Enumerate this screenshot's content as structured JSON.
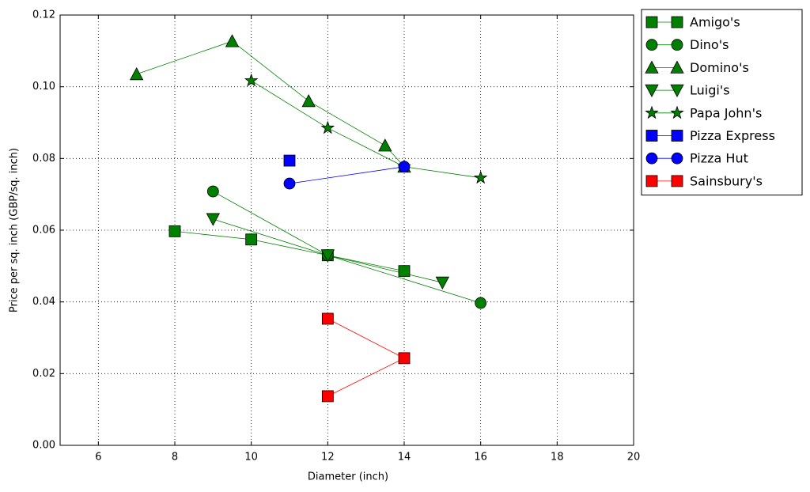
{
  "chart_data": {
    "type": "line",
    "x_label": "Diameter (inch)",
    "y_label": "Price per sq. inch (GBP/sq. inch)",
    "xlim": [
      5,
      20
    ],
    "ylim": [
      0,
      0.12
    ],
    "xticks": [
      6,
      8,
      10,
      12,
      14,
      16,
      18,
      20
    ],
    "yticks": [
      {
        "value": 0,
        "label": "0.00"
      },
      {
        "value": 0.02,
        "label": "0.02"
      },
      {
        "value": 0.04,
        "label": "0.04"
      },
      {
        "value": 0.06,
        "label": "0.06"
      },
      {
        "value": 0.08,
        "label": "0.08"
      },
      {
        "value": 0.1,
        "label": "0.10"
      },
      {
        "value": 0.12,
        "label": "0.12"
      }
    ],
    "grid": true,
    "legend": "outside-right",
    "series": [
      {
        "name": "Amigo's",
        "color": "#008000",
        "marker": "square",
        "x": [
          8,
          10,
          12,
          14
        ],
        "values": [
          0.0597,
          0.0574,
          0.053,
          0.0486
        ]
      },
      {
        "name": "Dino's",
        "color": "#008000",
        "marker": "circle",
        "x": [
          9,
          12,
          16
        ],
        "values": [
          0.0708,
          0.053,
          0.0397
        ]
      },
      {
        "name": "Domino's",
        "color": "#008000",
        "marker": "triangle-up",
        "x": [
          7,
          9.5,
          11.5,
          13.5,
          14
        ],
        "values": [
          0.1035,
          0.1127,
          0.096,
          0.0836,
          0.0777
        ]
      },
      {
        "name": "Luigi's",
        "color": "#008000",
        "marker": "triangle-down",
        "x": [
          9,
          12,
          15
        ],
        "values": [
          0.0631,
          0.053,
          0.0454
        ]
      },
      {
        "name": "Papa John's",
        "color": "#008000",
        "marker": "star",
        "x": [
          10,
          12,
          14,
          16
        ],
        "values": [
          0.1017,
          0.0885,
          0.0777,
          0.0746
        ]
      },
      {
        "name": "Pizza Express",
        "color": "#0000ff",
        "marker": "square",
        "x": [
          11
        ],
        "values": [
          0.0794
        ]
      },
      {
        "name": "Pizza Hut",
        "color": "#0000ff",
        "marker": "circle",
        "x": [
          11,
          14
        ],
        "values": [
          0.073,
          0.0777
        ]
      },
      {
        "name": "Sainsbury's",
        "color": "#ff0000",
        "marker": "square",
        "x": [
          12,
          14,
          12
        ],
        "values": [
          0.0353,
          0.0243,
          0.0137
        ]
      }
    ]
  }
}
